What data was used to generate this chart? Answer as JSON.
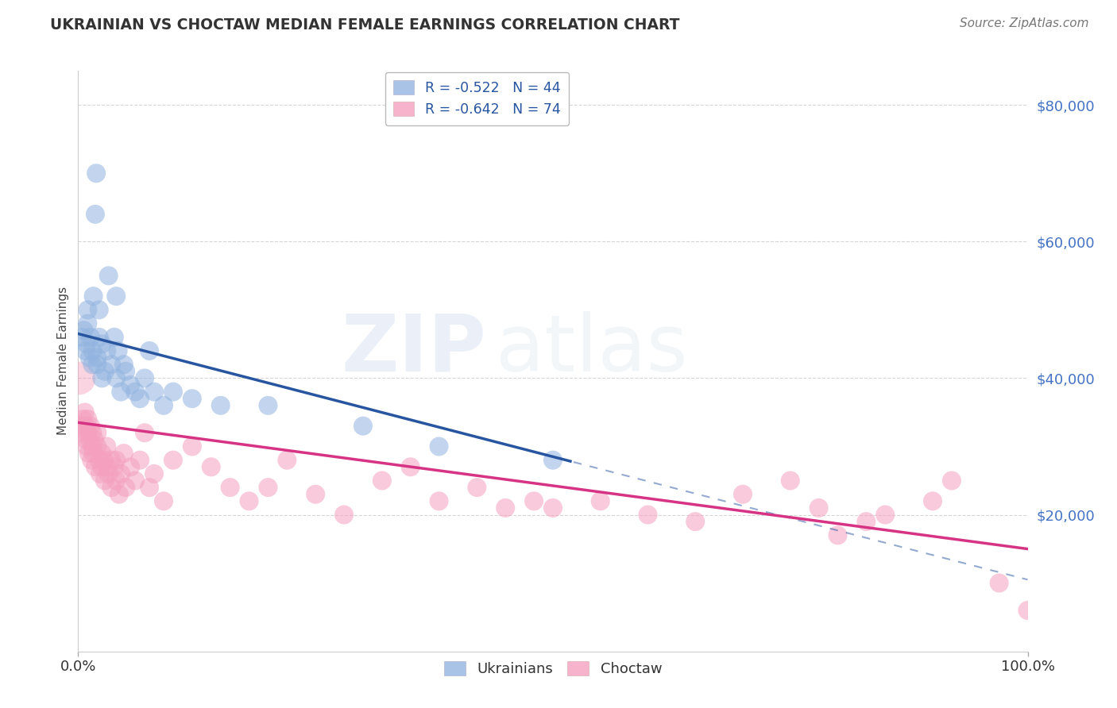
{
  "title": "UKRAINIAN VS CHOCTAW MEDIAN FEMALE EARNINGS CORRELATION CHART",
  "source_text": "Source: ZipAtlas.com",
  "ylabel": "Median Female Earnings",
  "watermark_zip": "ZIP",
  "watermark_atlas": "atlas",
  "xlim": [
    0,
    1.0
  ],
  "ylim": [
    0,
    85000
  ],
  "yticks": [
    20000,
    40000,
    60000,
    80000
  ],
  "ytick_labels": [
    "$20,000",
    "$40,000",
    "$60,000",
    "$80,000"
  ],
  "xtick_positions": [
    0,
    1.0
  ],
  "xtick_labels": [
    "0.0%",
    "100.0%"
  ],
  "blue_color": "#2855a0",
  "pink_color": "#d63384",
  "blue_scatter_color": "#92b4e0",
  "pink_scatter_color": "#f4a0be",
  "background_color": "#ffffff",
  "grid_color": "#cccccc",
  "title_color": "#333333",
  "ytick_label_color": "#4472C4",
  "blue_intercept": 46500,
  "blue_slope": -36000,
  "pink_intercept": 33500,
  "pink_slope": -18500,
  "blue_line_end_x": 0.52,
  "blue_x_data": [
    0.004,
    0.006,
    0.008,
    0.009,
    0.01,
    0.01,
    0.012,
    0.013,
    0.015,
    0.015,
    0.016,
    0.018,
    0.019,
    0.02,
    0.02,
    0.022,
    0.022,
    0.025,
    0.025,
    0.028,
    0.03,
    0.032,
    0.035,
    0.038,
    0.04,
    0.04,
    0.042,
    0.045,
    0.048,
    0.05,
    0.055,
    0.06,
    0.065,
    0.07,
    0.075,
    0.08,
    0.09,
    0.1,
    0.12,
    0.15,
    0.2,
    0.3,
    0.38,
    0.5
  ],
  "blue_y_data": [
    46000,
    47000,
    44000,
    45000,
    48000,
    50000,
    43000,
    46000,
    42000,
    44000,
    52000,
    64000,
    70000,
    42000,
    43000,
    46000,
    50000,
    40000,
    45000,
    41000,
    44000,
    55000,
    42000,
    46000,
    40000,
    52000,
    44000,
    38000,
    42000,
    41000,
    39000,
    38000,
    37000,
    40000,
    44000,
    38000,
    36000,
    38000,
    37000,
    36000,
    36000,
    33000,
    30000,
    28000
  ],
  "pink_x_data": [
    0.003,
    0.005,
    0.005,
    0.007,
    0.008,
    0.008,
    0.009,
    0.01,
    0.01,
    0.011,
    0.012,
    0.013,
    0.014,
    0.015,
    0.015,
    0.016,
    0.017,
    0.018,
    0.02,
    0.02,
    0.022,
    0.023,
    0.025,
    0.025,
    0.027,
    0.028,
    0.03,
    0.03,
    0.032,
    0.035,
    0.035,
    0.038,
    0.04,
    0.04,
    0.043,
    0.045,
    0.048,
    0.05,
    0.055,
    0.06,
    0.065,
    0.07,
    0.075,
    0.08,
    0.09,
    0.1,
    0.12,
    0.14,
    0.16,
    0.18,
    0.2,
    0.22,
    0.25,
    0.28,
    0.32,
    0.35,
    0.38,
    0.42,
    0.45,
    0.48,
    0.5,
    0.55,
    0.6,
    0.65,
    0.7,
    0.75,
    0.78,
    0.8,
    0.83,
    0.85,
    0.9,
    0.92,
    0.97,
    1.0
  ],
  "pink_y_data": [
    33000,
    34000,
    32000,
    35000,
    31000,
    33000,
    30000,
    34000,
    32000,
    29000,
    31000,
    33000,
    28000,
    30000,
    32000,
    29000,
    31000,
    27000,
    30000,
    32000,
    28000,
    26000,
    29000,
    27000,
    28000,
    25000,
    27000,
    30000,
    26000,
    28000,
    24000,
    27000,
    25000,
    28000,
    23000,
    26000,
    29000,
    24000,
    27000,
    25000,
    28000,
    32000,
    24000,
    26000,
    22000,
    28000,
    30000,
    27000,
    24000,
    22000,
    24000,
    28000,
    23000,
    20000,
    25000,
    27000,
    22000,
    24000,
    21000,
    22000,
    21000,
    22000,
    20000,
    19000,
    23000,
    25000,
    21000,
    17000,
    19000,
    20000,
    22000,
    25000,
    10000,
    6000
  ],
  "legend_blue_label": "R = -0.522   N = 44",
  "legend_pink_label": "R = -0.642   N = 74",
  "bottom_legend_blue": "Ukrainians",
  "bottom_legend_pink": "Choctaw"
}
